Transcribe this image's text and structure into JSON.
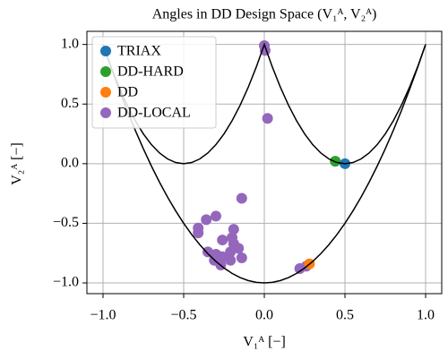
{
  "chart_data": {
    "type": "scatter",
    "title": "Angles in DD Design Space (V₁ᴬ, V₂ᴬ)",
    "x_label": "V₁ᴬ [−]",
    "y_label": "V₂ᴬ [−]",
    "xlim": [
      -1.1,
      1.1
    ],
    "ylim": [
      -1.09,
      1.11
    ],
    "xticks": [
      {
        "value": -1,
        "label": "−1.0"
      },
      {
        "value": -0.5,
        "label": "−0.5"
      },
      {
        "value": 0,
        "label": "0.0"
      },
      0.5,
      {
        "value": 1,
        "label": "1.0"
      }
    ],
    "yticks": [
      {
        "value": -1,
        "label": "−1.0"
      },
      {
        "value": -0.5,
        "label": "−0.5"
      },
      {
        "value": 0,
        "label": "0.0"
      },
      0.5,
      {
        "value": 1,
        "label": "1.0"
      }
    ],
    "grid": true,
    "legend": "upper left",
    "series": [
      {
        "type": "line",
        "color": "#000000",
        "x": [
          -1,
          -0.95,
          -0.9,
          -0.85,
          -0.8,
          -0.75,
          -0.7,
          -0.65,
          -0.6,
          -0.55,
          -0.5,
          -0.45,
          -0.4,
          -0.35,
          -0.3,
          -0.25,
          -0.2,
          -0.15,
          -0.1,
          -0.05,
          0,
          0.05,
          0.1,
          0.15,
          0.2,
          0.25,
          0.3,
          0.35,
          0.4,
          0.45,
          0.5,
          0.55,
          0.6,
          0.65,
          0.7,
          0.75,
          0.8,
          0.85,
          0.9,
          0.95,
          1
        ],
        "values": [
          1,
          0.81,
          0.64,
          0.49,
          0.36,
          0.25,
          0.16,
          0.09,
          0.04,
          0.01,
          0,
          0.01,
          0.04,
          0.09,
          0.16,
          0.25,
          0.36,
          0.49,
          0.64,
          0.81,
          1,
          0.81,
          0.64,
          0.49,
          0.36,
          0.25,
          0.16,
          0.09,
          0.04,
          0.01,
          0,
          0.01,
          0.04,
          0.09,
          0.16,
          0.25,
          0.36,
          0.49,
          0.64,
          0.81,
          1
        ]
      },
      {
        "type": "line",
        "color": "#000000",
        "x": [
          -1,
          -0.95,
          -0.9,
          -0.85,
          -0.8,
          -0.75,
          -0.7,
          -0.65,
          -0.6,
          -0.55,
          -0.5,
          -0.45,
          -0.4,
          -0.35,
          -0.3,
          -0.25,
          -0.2,
          -0.15,
          -0.1,
          -0.05,
          0,
          0.05,
          0.1,
          0.15,
          0.2,
          0.25,
          0.3,
          0.35,
          0.4,
          0.45,
          0.5,
          0.55,
          0.6,
          0.65,
          0.7,
          0.75,
          0.8,
          0.85,
          0.9,
          0.95,
          1
        ],
        "values": [
          1,
          0.805,
          0.62,
          0.445,
          0.28,
          0.125,
          -0.02,
          -0.155,
          -0.28,
          -0.395,
          -0.5,
          -0.595,
          -0.68,
          -0.755,
          -0.82,
          -0.875,
          -0.92,
          -0.955,
          -0.98,
          -0.995,
          -1,
          -0.995,
          -0.98,
          -0.955,
          -0.92,
          -0.875,
          -0.82,
          -0.755,
          -0.68,
          -0.595,
          -0.5,
          -0.395,
          -0.28,
          -0.155,
          -0.02,
          0.125,
          0.28,
          0.445,
          0.62,
          0.805,
          1
        ]
      },
      {
        "type": "scatter",
        "name": "TRIAX",
        "color": "#1f77b4",
        "x": [
          0.5
        ],
        "values": [
          0.0
        ]
      },
      {
        "type": "scatter",
        "name": "DD-HARD",
        "color": "#2ca02c",
        "x": [
          0.44
        ],
        "values": [
          0.02
        ]
      },
      {
        "type": "scatter",
        "name": "DD",
        "color": "#ff7f0e",
        "x": [
          0.28
        ],
        "values": [
          -0.84
        ]
      },
      {
        "type": "scatter",
        "name": "DD-LOCAL",
        "color": "#9467bd",
        "x": [
          0.0,
          0.005,
          0.02,
          -0.14,
          -0.3,
          -0.36,
          -0.41,
          -0.41,
          -0.19,
          -0.2,
          -0.26,
          -0.19,
          -0.35,
          -0.3,
          -0.26,
          -0.21,
          -0.16,
          -0.21,
          -0.31,
          -0.27,
          -0.14,
          0.22,
          0.26
        ],
        "values": [
          0.99,
          0.95,
          0.38,
          -0.29,
          -0.44,
          -0.47,
          -0.54,
          -0.58,
          -0.55,
          -0.62,
          -0.64,
          -0.67,
          -0.74,
          -0.76,
          -0.78,
          -0.74,
          -0.71,
          -0.81,
          -0.81,
          -0.85,
          -0.79,
          -0.88,
          -0.86
        ]
      }
    ]
  }
}
